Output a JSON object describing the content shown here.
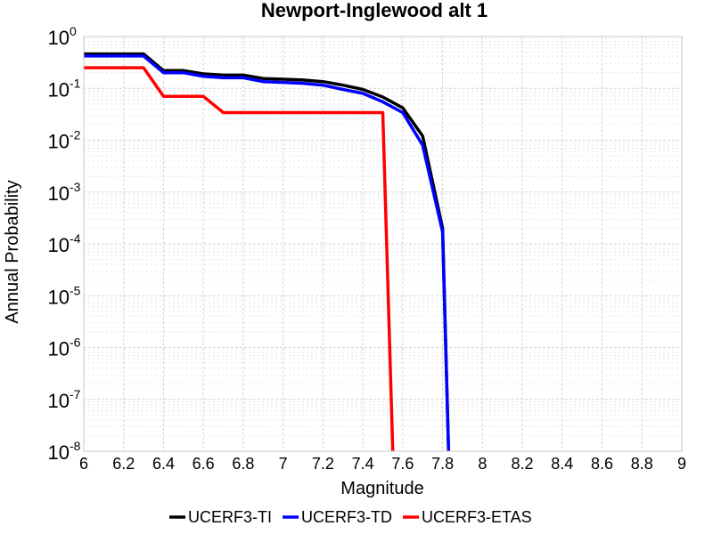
{
  "chart_data": {
    "type": "line",
    "title": "Newport-Inglewood alt 1",
    "xlabel": "Magnitude",
    "ylabel": "Annual Probability",
    "xlim": [
      6,
      9
    ],
    "ylim": [
      1e-08,
      1
    ],
    "yscale": "log",
    "grid": true,
    "legend_position": "bottom",
    "x_ticks": [
      "6",
      "6.2",
      "6.4",
      "6.6",
      "6.8",
      "7",
      "7.2",
      "7.4",
      "7.6",
      "7.8",
      "8",
      "8.2",
      "8.4",
      "8.6",
      "8.8",
      "9"
    ],
    "y_ticks": [
      {
        "base": "10",
        "exp": "0",
        "value": 1
      },
      {
        "base": "10",
        "exp": "-1",
        "value": 0.1
      },
      {
        "base": "10",
        "exp": "-2",
        "value": 0.01
      },
      {
        "base": "10",
        "exp": "-3",
        "value": 0.001
      },
      {
        "base": "10",
        "exp": "-4",
        "value": 0.0001
      },
      {
        "base": "10",
        "exp": "-5",
        "value": 1e-05
      },
      {
        "base": "10",
        "exp": "-6",
        "value": 1e-06
      },
      {
        "base": "10",
        "exp": "-7",
        "value": 1e-07
      },
      {
        "base": "10",
        "exp": "-8",
        "value": 1e-08
      }
    ],
    "series": [
      {
        "name": "UCERF3-TI",
        "color": "#000000",
        "points": [
          [
            6.0,
            0.46
          ],
          [
            6.3,
            0.46
          ],
          [
            6.4,
            0.22
          ],
          [
            6.5,
            0.22
          ],
          [
            6.6,
            0.19
          ],
          [
            6.7,
            0.18
          ],
          [
            6.8,
            0.18
          ],
          [
            6.9,
            0.155
          ],
          [
            7.0,
            0.15
          ],
          [
            7.1,
            0.145
          ],
          [
            7.2,
            0.135
          ],
          [
            7.3,
            0.115
          ],
          [
            7.4,
            0.095
          ],
          [
            7.5,
            0.068
          ],
          [
            7.6,
            0.042
          ],
          [
            7.7,
            0.012
          ],
          [
            7.8,
            0.0002
          ],
          [
            7.83,
            1e-08
          ]
        ]
      },
      {
        "name": "UCERF3-TD",
        "color": "#0000ff",
        "points": [
          [
            6.0,
            0.42
          ],
          [
            6.3,
            0.42
          ],
          [
            6.4,
            0.2
          ],
          [
            6.5,
            0.2
          ],
          [
            6.6,
            0.17
          ],
          [
            6.7,
            0.16
          ],
          [
            6.8,
            0.16
          ],
          [
            6.9,
            0.135
          ],
          [
            7.0,
            0.13
          ],
          [
            7.1,
            0.125
          ],
          [
            7.2,
            0.115
          ],
          [
            7.3,
            0.095
          ],
          [
            7.4,
            0.08
          ],
          [
            7.5,
            0.055
          ],
          [
            7.6,
            0.034
          ],
          [
            7.7,
            0.008
          ],
          [
            7.8,
            0.00017
          ],
          [
            7.83,
            1e-08
          ]
        ]
      },
      {
        "name": "UCERF3-ETAS",
        "color": "#ff0000",
        "points": [
          [
            6.0,
            0.25
          ],
          [
            6.3,
            0.25
          ],
          [
            6.4,
            0.07
          ],
          [
            6.6,
            0.07
          ],
          [
            6.7,
            0.034
          ],
          [
            7.5,
            0.034
          ],
          [
            7.55,
            1e-08
          ]
        ]
      }
    ]
  }
}
